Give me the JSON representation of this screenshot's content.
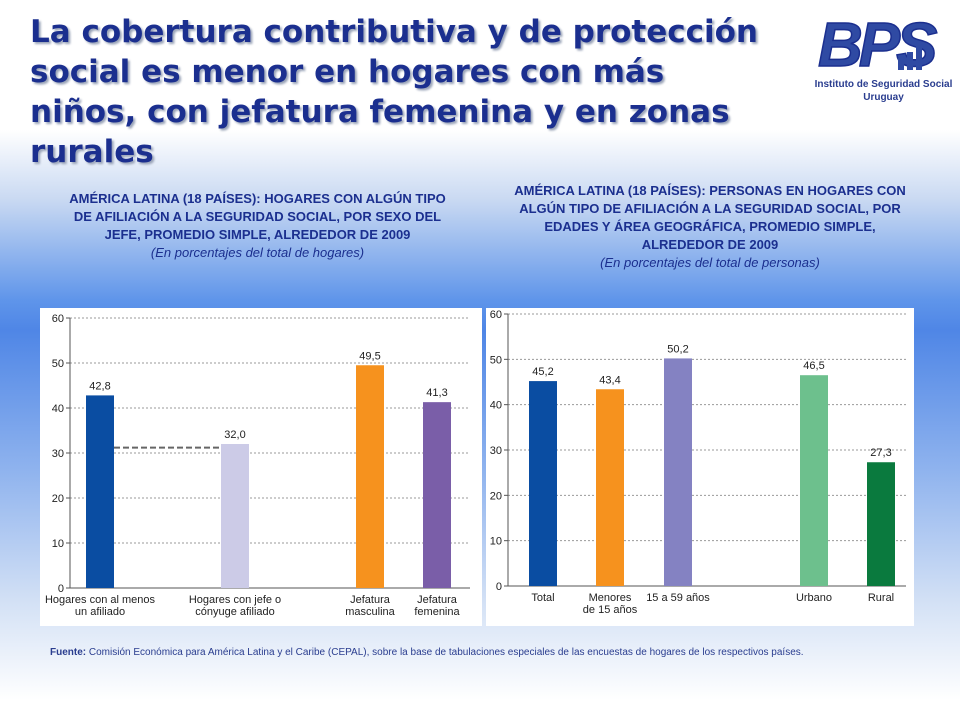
{
  "header": {
    "title": "La cobertura contributiva y de protección social es menor en hogares con más niños, con jefatura femenina y en zonas rurales"
  },
  "logo": {
    "text": "BPS",
    "line1": "Instituto de Seguridad Social",
    "line2": "Uruguay"
  },
  "left_chart": {
    "heading": "AMÉRICA LATINA (18 PAÍSES): HOGARES CON ALGÚN TIPO DE AFILIACIÓN A LA SEGURIDAD SOCIAL, POR SEXO DEL JEFE, PROMEDIO SIMPLE, ALREDEDOR DE 2009",
    "subheading": "(En porcentajes del total de hogares)"
  },
  "right_chart": {
    "heading": "AMÉRICA LATINA (18 PAÍSES): PERSONAS EN HOGARES CON ALGÚN TIPO DE AFILIACIÓN A LA SEGURIDAD SOCIAL, POR EDADES Y ÁREA GEOGRÁFICA, PROMEDIO SIMPLE, ALREDEDOR DE 2009",
    "subheading": "(En porcentajes del total de personas)"
  },
  "source": {
    "label": "Fuente:",
    "text": "Comisión Económica para América Latina y el Caribe (CEPAL), sobre la base de tabulaciones especiales de las encuestas de hogares de los respectivos países."
  },
  "colors": {
    "title": "#1b2f8f",
    "dark_blue": "#0a4da2",
    "lavender": "#cccbe7",
    "orange": "#f6921e",
    "purple": "#7a5ea8",
    "periwinkle": "#8482c2",
    "light_green": "#6dc08d",
    "dark_green": "#0a7a3e"
  },
  "chart_data": [
    {
      "type": "bar",
      "categories": [
        [
          "Hogares con al menos",
          "un afiliado"
        ],
        [
          "Hogares con jefe o",
          "cónyuge afiliado"
        ],
        [
          "Jefatura",
          "masculina"
        ],
        [
          "Jefatura",
          "femenina"
        ]
      ],
      "values": [
        42.8,
        32.0,
        49.5,
        41.3
      ],
      "labels": [
        "42,8",
        "32,0",
        "49,5",
        "41,3"
      ],
      "colors": [
        "#0a4da2",
        "#cccbe7",
        "#f6921e",
        "#7a5ea8"
      ],
      "yticks": [
        0,
        10,
        20,
        30,
        40,
        50,
        60
      ],
      "ylim": [
        0,
        60
      ],
      "reference_line": 31.2,
      "grid": true
    },
    {
      "type": "bar",
      "categories": [
        [
          "Total"
        ],
        [
          "Menores",
          "de 15 años"
        ],
        [
          "15 a 59 años"
        ],
        [
          "Urbano"
        ],
        [
          "Rural"
        ]
      ],
      "values": [
        45.2,
        43.4,
        50.2,
        46.5,
        27.3
      ],
      "labels": [
        "45,2",
        "43,4",
        "50,2",
        "46,5",
        "27,3"
      ],
      "colors": [
        "#0a4da2",
        "#f6921e",
        "#8482c2",
        "#6dc08d",
        "#0a7a3e"
      ],
      "yticks": [
        0,
        10,
        20,
        30,
        40,
        50,
        60
      ],
      "ylim": [
        0,
        60
      ],
      "grid": true
    }
  ]
}
